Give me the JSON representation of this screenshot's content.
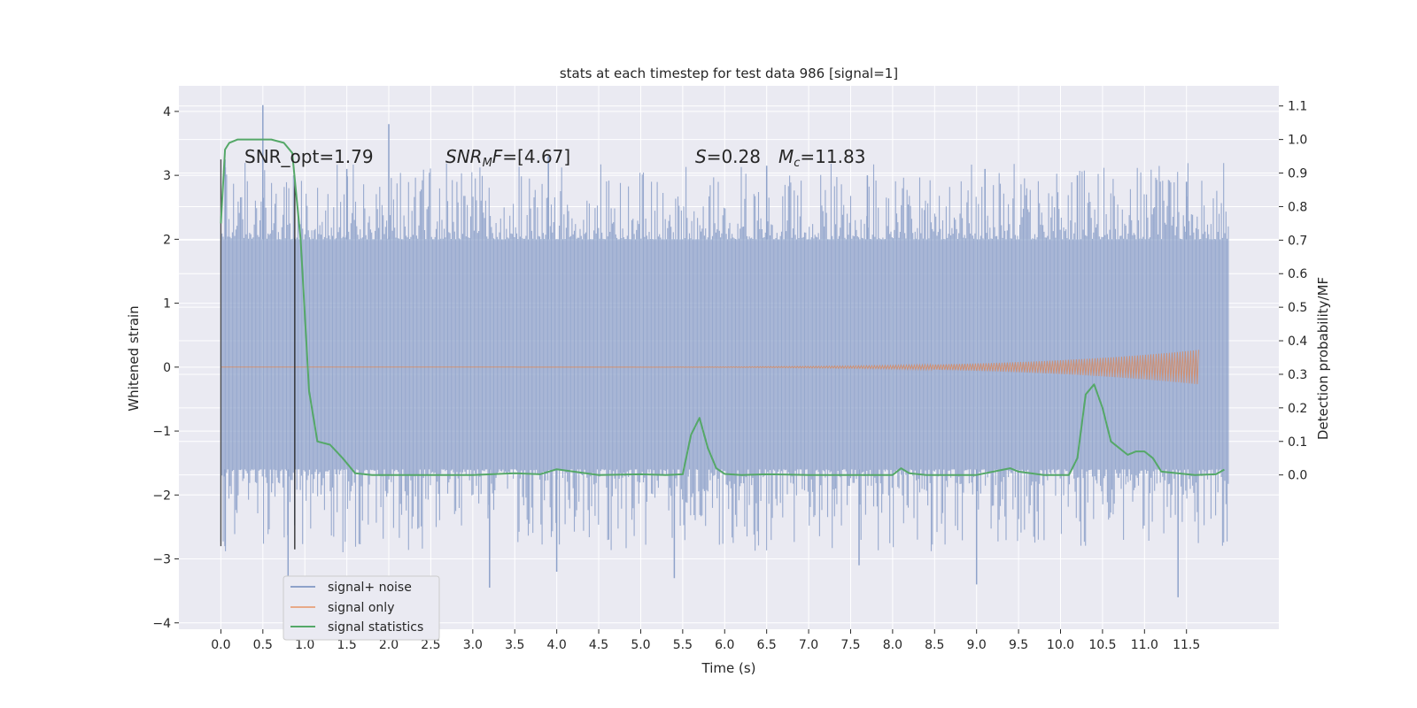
{
  "chart_data": {
    "type": "line",
    "title": "stats at each timestep for test data 986 [signal=1]",
    "xlabel": "Time (s)",
    "ylabel": "Whitened strain",
    "y2label": "Detection probability/MF",
    "xlim": [
      -0.5,
      12.6
    ],
    "ylim": [
      -4.1,
      4.4
    ],
    "y2lim": [
      -0.46,
      1.16
    ],
    "x_ticks": [
      0.0,
      0.5,
      1.0,
      1.5,
      2.0,
      2.5,
      3.0,
      3.5,
      4.0,
      4.5,
      5.0,
      5.5,
      6.0,
      6.5,
      7.0,
      7.5,
      8.0,
      8.5,
      9.0,
      9.5,
      10.0,
      10.5,
      11.0,
      11.5
    ],
    "x_tick_labels": [
      "0.0",
      "0.5",
      "1.0",
      "1.5",
      "2.0",
      "2.5",
      "3.0",
      "3.5",
      "4.0",
      "4.5",
      "5.0",
      "5.5",
      "6.0",
      "6.5",
      "7.0",
      "7.5",
      "8.0",
      "8.5",
      "9.0",
      "9.5",
      "10.0",
      "10.5",
      "11.0",
      "11.5"
    ],
    "y_ticks": [
      4,
      3,
      2,
      1,
      0,
      -1,
      -2,
      -3,
      -4
    ],
    "y_tick_labels": [
      "4",
      "3",
      "2",
      "1",
      "0",
      "−1",
      "−2",
      "−3",
      "−4"
    ],
    "y2_ticks": [
      1.1,
      1.0,
      0.9,
      0.8,
      0.7,
      0.6,
      0.5,
      0.4,
      0.3,
      0.2,
      0.1,
      0.0
    ],
    "y2_tick_labels": [
      "1.1",
      "1.0",
      "0.9",
      "0.8",
      "0.7",
      "0.6",
      "0.5",
      "0.4",
      "0.3",
      "0.2",
      "0.1",
      "0.0"
    ],
    "grid": true,
    "legend_position": "lower-left",
    "annotations": [
      "SNR_opt=1.79",
      "SNR_MF=[4.67]",
      "S=0.28",
      "M_c=11.83"
    ],
    "series": [
      {
        "name": "signal+ noise",
        "color": "#8ea2ca",
        "x_range": [
          0.0,
          12.0
        ],
        "envelope_core": [
          -1.6,
          2.0
        ],
        "peaks": [
          [
            0.05,
            3.25
          ],
          [
            0.5,
            4.1
          ],
          [
            1.5,
            3.1
          ],
          [
            2.0,
            3.8
          ],
          [
            3.9,
            3.3
          ],
          [
            6.5,
            3.15
          ],
          [
            7.7,
            3.0
          ],
          [
            9.1,
            3.1
          ],
          [
            10.2,
            3.0
          ],
          [
            11.5,
            2.9
          ]
        ],
        "troughs": [
          [
            0.05,
            -2.8
          ],
          [
            0.8,
            -3.6
          ],
          [
            3.2,
            -3.45
          ],
          [
            4.0,
            -3.2
          ],
          [
            5.4,
            -3.3
          ],
          [
            7.6,
            -3.1
          ],
          [
            9.0,
            -3.4
          ],
          [
            11.4,
            -3.6
          ]
        ]
      },
      {
        "name": "signal only",
        "color": "#dd8452",
        "x_range": [
          0.0,
          11.65
        ],
        "amplitude_start": 0.0,
        "amplitude_end": 0.27
      },
      {
        "name": "signal statistics",
        "color": "#55a868",
        "axis": "right",
        "x": [
          0.0,
          0.05,
          0.1,
          0.2,
          0.4,
          0.6,
          0.75,
          0.85,
          0.95,
          1.05,
          1.15,
          1.3,
          1.45,
          1.6,
          1.8,
          2.0,
          3.0,
          3.5,
          3.8,
          4.0,
          4.2,
          4.5,
          5.0,
          5.3,
          5.5,
          5.6,
          5.7,
          5.8,
          5.9,
          6.0,
          6.2,
          6.5,
          7.0,
          7.5,
          8.0,
          8.1,
          8.2,
          8.4,
          9.0,
          9.3,
          9.4,
          9.5,
          9.8,
          10.1,
          10.2,
          10.3,
          10.4,
          10.5,
          10.6,
          10.8,
          10.9,
          11.0,
          11.1,
          11.2,
          11.6,
          11.85,
          11.95
        ],
        "y": [
          0.75,
          0.97,
          0.99,
          1.0,
          1.0,
          1.0,
          0.99,
          0.96,
          0.7,
          0.25,
          0.1,
          0.09,
          0.05,
          0.005,
          0.0,
          0.0,
          0.0,
          0.005,
          0.002,
          0.017,
          0.01,
          0.0,
          0.002,
          0.0,
          0.002,
          0.12,
          0.17,
          0.08,
          0.02,
          0.003,
          0.0,
          0.002,
          0.0,
          0.0,
          0.0,
          0.02,
          0.005,
          0.0,
          0.0,
          0.015,
          0.02,
          0.01,
          0.0,
          0.0,
          0.05,
          0.24,
          0.27,
          0.2,
          0.1,
          0.06,
          0.07,
          0.07,
          0.05,
          0.01,
          0.0,
          0.002,
          0.016
        ]
      }
    ],
    "markers": [
      {
        "x": 0.0,
        "y_range": [
          -2.8,
          3.25
        ],
        "color": "#4a4a4a"
      },
      {
        "x": 0.88,
        "y_range": [
          -2.85,
          3.0
        ],
        "color": "#262626"
      }
    ]
  },
  "legend": {
    "items": [
      "signal+ noise",
      "signal only",
      "signal statistics"
    ]
  }
}
